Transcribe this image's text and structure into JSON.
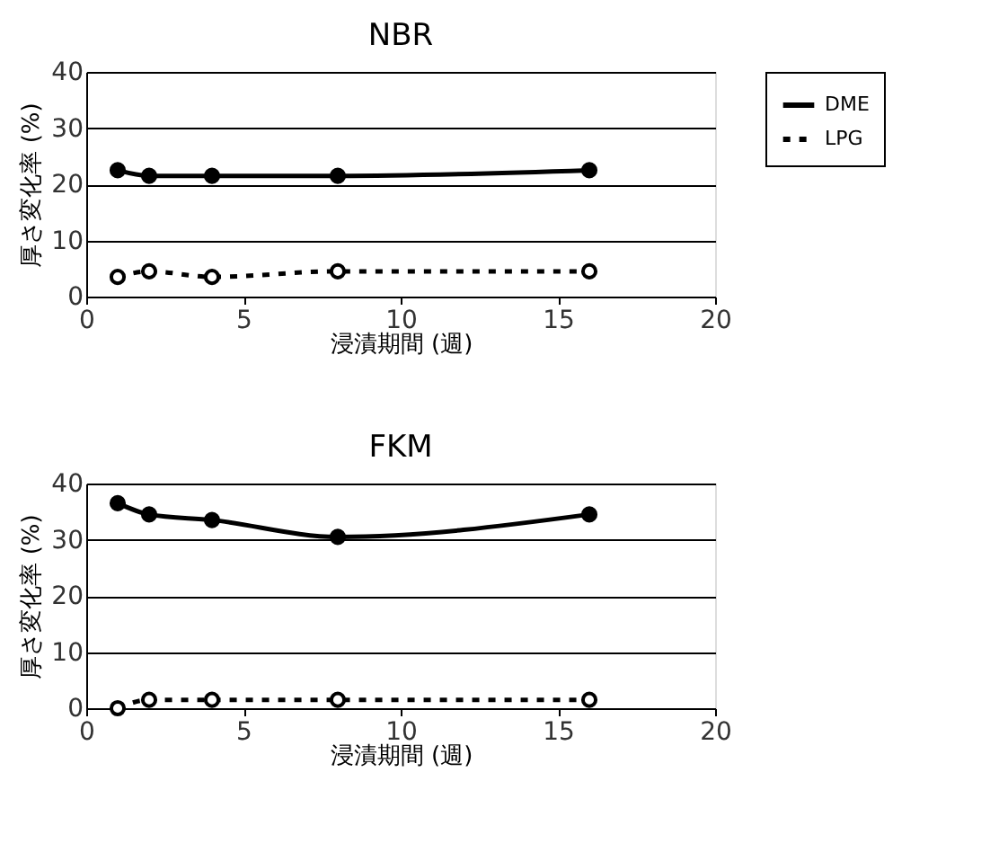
{
  "chart_data": [
    {
      "type": "line",
      "title": "NBR",
      "xlabel": "浸漬期間 (週)",
      "ylabel": "厚さ変化率 (%)",
      "x": [
        1,
        2,
        4,
        8,
        16
      ],
      "xlim": [
        0,
        20
      ],
      "xticks": [
        0,
        5,
        10,
        15,
        20
      ],
      "ylim": [
        0,
        40
      ],
      "yticks": [
        0,
        10,
        20,
        30,
        40
      ],
      "grid": "y",
      "legend": "right",
      "marker": "circle",
      "series": [
        {
          "name": "DME",
          "color": "#000000",
          "line_style": "solid",
          "values": [
            22.5,
            21.5,
            21.5,
            21.5,
            22.5
          ]
        },
        {
          "name": "LPG",
          "color": "#000000",
          "line_style": "dashed",
          "values": [
            3.5,
            4.5,
            3.5,
            4.5,
            4.5
          ]
        }
      ]
    },
    {
      "type": "line",
      "title": "FKM",
      "xlabel": "浸漬期間 (週)",
      "ylabel": "厚さ変化率 (%)",
      "x": [
        1,
        2,
        4,
        8,
        16
      ],
      "xlim": [
        0,
        20
      ],
      "xticks": [
        0,
        5,
        10,
        15,
        20
      ],
      "ylim": [
        0,
        40
      ],
      "yticks": [
        0,
        10,
        20,
        30,
        40
      ],
      "grid": "y",
      "legend": "right",
      "marker": "circle",
      "series": [
        {
          "name": "DME",
          "color": "#000000",
          "line_style": "solid",
          "values": [
            36.5,
            34.5,
            33.5,
            30.5,
            34.5
          ]
        },
        {
          "name": "LPG",
          "color": "#000000",
          "line_style": "dashed",
          "values": [
            0,
            1.5,
            1.5,
            1.5,
            1.5
          ]
        }
      ]
    }
  ]
}
